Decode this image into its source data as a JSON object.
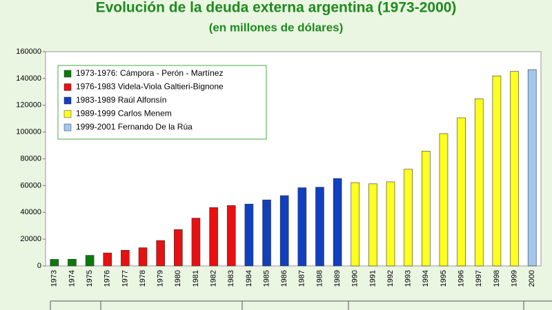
{
  "chart_data": {
    "type": "bar",
    "title": "Evolución de la deuda externa argentina (1973-2000)",
    "subtitle": "(en millones de dólares)",
    "categories": [
      "1973",
      "1974",
      "1975",
      "1976",
      "1977",
      "1978",
      "1979",
      "1980",
      "1981",
      "1982",
      "1983",
      "1984",
      "1985",
      "1986",
      "1987",
      "1988",
      "1989",
      "1990",
      "1991",
      "1992",
      "1993",
      "1994",
      "1995",
      "1996",
      "1997",
      "1998",
      "1999",
      "2000"
    ],
    "series": [
      {
        "name": "1973-1976: Cámpora - Perón - Martínez",
        "color": "#0a7a0a",
        "values": [
          4900,
          5000,
          7900,
          null,
          null,
          null,
          null,
          null,
          null,
          null,
          null,
          null,
          null,
          null,
          null,
          null,
          null,
          null,
          null,
          null,
          null,
          null,
          null,
          null,
          null,
          null,
          null,
          null
        ]
      },
      {
        "name": "1976-1983 Videla-Viola Galtieri-Bignone",
        "color": "#e81010",
        "values": [
          null,
          null,
          null,
          9700,
          11700,
          13600,
          19000,
          27200,
          35700,
          43600,
          45100,
          null,
          null,
          null,
          null,
          null,
          null,
          null,
          null,
          null,
          null,
          null,
          null,
          null,
          null,
          null,
          null,
          null
        ]
      },
      {
        "name": "1983-1989 Raúl Alfonsín",
        "color": "#1040c0",
        "values": [
          null,
          null,
          null,
          null,
          null,
          null,
          null,
          null,
          null,
          null,
          null,
          46200,
          49300,
          52500,
          58400,
          58800,
          65300,
          null,
          null,
          null,
          null,
          null,
          null,
          null,
          null,
          null,
          null,
          null
        ]
      },
      {
        "name": "1989-1999 Carlos Menem",
        "color": "#ffff20",
        "values": [
          null,
          null,
          null,
          null,
          null,
          null,
          null,
          null,
          null,
          null,
          null,
          null,
          null,
          null,
          null,
          null,
          null,
          62200,
          61300,
          62800,
          72200,
          85700,
          98800,
          110600,
          124800,
          141900,
          145300,
          null
        ]
      },
      {
        "name": "1999-2001 Fernando De la Rúa",
        "color": "#a0c8f0",
        "values": [
          null,
          null,
          null,
          null,
          null,
          null,
          null,
          null,
          null,
          null,
          null,
          null,
          null,
          null,
          null,
          null,
          null,
          null,
          null,
          null,
          null,
          null,
          null,
          null,
          null,
          null,
          null,
          146600
        ]
      }
    ],
    "ylim": [
      0,
      160000
    ],
    "yticks": [
      0,
      20000,
      40000,
      60000,
      80000,
      100000,
      120000,
      140000,
      160000
    ],
    "grid": false
  }
}
